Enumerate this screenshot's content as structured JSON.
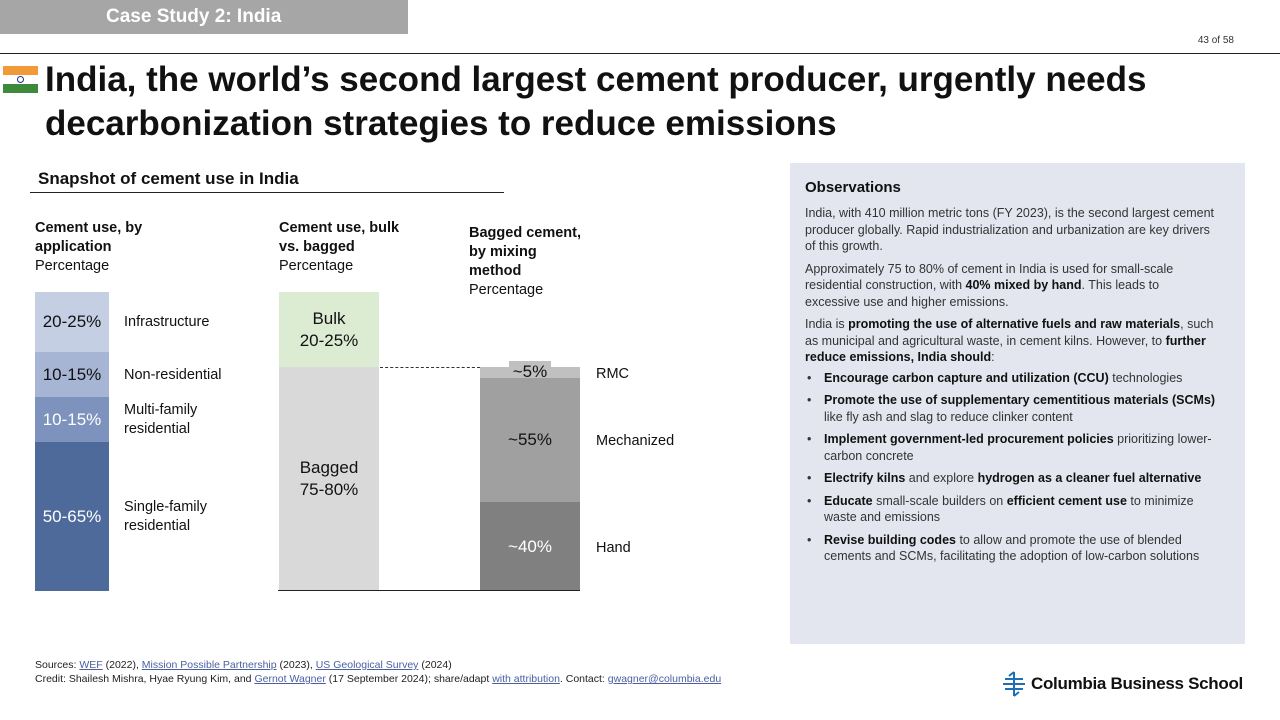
{
  "header": {
    "case_tag": "Case Study 2: India",
    "page": "43 of 58",
    "title": "India, the world’s second largest cement producer, urgently needs decarbonization strategies to reduce emissions"
  },
  "snapshot": {
    "title": "Snapshot of cement use in India",
    "col1": {
      "title": "Cement use, by application",
      "sub": "Percentage"
    },
    "col2": {
      "title": "Cement use, bulk vs. bagged",
      "sub": "Percentage"
    },
    "col3": {
      "title": "Bagged cement, by mixing method",
      "sub": "Percentage"
    }
  },
  "chart_data": [
    {
      "type": "bar",
      "stacked": true,
      "title": "Cement use, by application",
      "ylabel": "Percentage",
      "segments": [
        {
          "name": "Infrastructure",
          "label": "20-25%",
          "value": [
            20,
            25
          ],
          "color": "#c5cfe3"
        },
        {
          "name": "Non-residential",
          "label": "10-15%",
          "value": [
            10,
            15
          ],
          "color": "#a6b5d3"
        },
        {
          "name": "Multi-family residential",
          "label": "10-15%",
          "value": [
            10,
            15
          ],
          "color": "#7d93bd"
        },
        {
          "name": "Single-family residential",
          "label": "50-65%",
          "value": [
            50,
            65
          ],
          "color": "#4e6a9b"
        }
      ]
    },
    {
      "type": "bar",
      "stacked": true,
      "title": "Cement use, bulk vs. bagged",
      "ylabel": "Percentage",
      "segments": [
        {
          "name": "Bulk",
          "label": "20-25%",
          "value": [
            20,
            25
          ],
          "color": "#dcecd2"
        },
        {
          "name": "Bagged",
          "label": "75-80%",
          "value": [
            75,
            80
          ],
          "color": "#d9d9d9"
        }
      ]
    },
    {
      "type": "bar",
      "stacked": true,
      "title": "Bagged cement, by mixing method",
      "ylabel": "Percentage",
      "segments": [
        {
          "name": "RMC",
          "label": "~5%",
          "value": 5,
          "color": "#c0c0c0"
        },
        {
          "name": "Mechanized",
          "label": "~55%",
          "value": 55,
          "color": "#a0a0a0"
        },
        {
          "name": "Hand",
          "label": "~40%",
          "value": 40,
          "color": "#808080"
        }
      ]
    }
  ],
  "observations": {
    "title": "Observations",
    "p1": "India, with 410 million metric tons (FY 2023), is the second largest cement producer globally. Rapid industrialization and urbanization are key drivers of this growth.",
    "p2_a": "Approximately 75 to 80% of cement in India is used for small-scale residential construction, with ",
    "p2_b": "40% mixed by hand",
    "p2_c": ". This leads to excessive use and higher emissions.",
    "p3_a": "India is ",
    "p3_b": "promoting the use of alternative fuels and raw materials",
    "p3_c": ", such as municipal and agricultural waste, in cement kilns. However, to ",
    "p3_d": "further reduce emissions, India should",
    "p3_e": ":",
    "b1_a": "Encourage carbon capture and utilization (CCU)",
    "b1_b": " technologies",
    "b2_a": "Promote the use of supplementary cementitious materials (SCMs)",
    "b2_b": " like fly ash and slag to reduce clinker content",
    "b3_a": "Implement government-led procurement policies",
    "b3_b": " prioritizing lower-carbon concrete",
    "b4_a": "Electrify kilns",
    "b4_b": " and explore ",
    "b4_c": "hydrogen as a cleaner fuel alternative",
    "b5_a": "Educate",
    "b5_b": " small-scale builders on ",
    "b5_c": "efficient cement use",
    "b5_d": " to minimize waste and emissions",
    "b6_a": "Revise building codes",
    "b6_b": " to allow and promote the use of blended cements and SCMs, facilitating the adoption of low-carbon solutions"
  },
  "sources": {
    "s_label": "Sources: ",
    "s_wef": "WEF",
    "s_wef_year": " (2022), ",
    "s_mpp": "Mission Possible Partnership",
    "s_mpp_year": " (2023), ",
    "s_usgs": "US Geological Survey",
    "s_usgs_year": " (2024)",
    "c_label": "Credit: Shailesh Mishra, Hyae Ryung Kim, and ",
    "c_gw": "Gernot Wagner",
    "c_date": " (17 September 2024); share/adapt ",
    "c_attr": "with attribution",
    "c_contact": ". Contact: ",
    "c_email": "gwagner@columbia.edu"
  },
  "logo": {
    "text": "Columbia Business School"
  }
}
